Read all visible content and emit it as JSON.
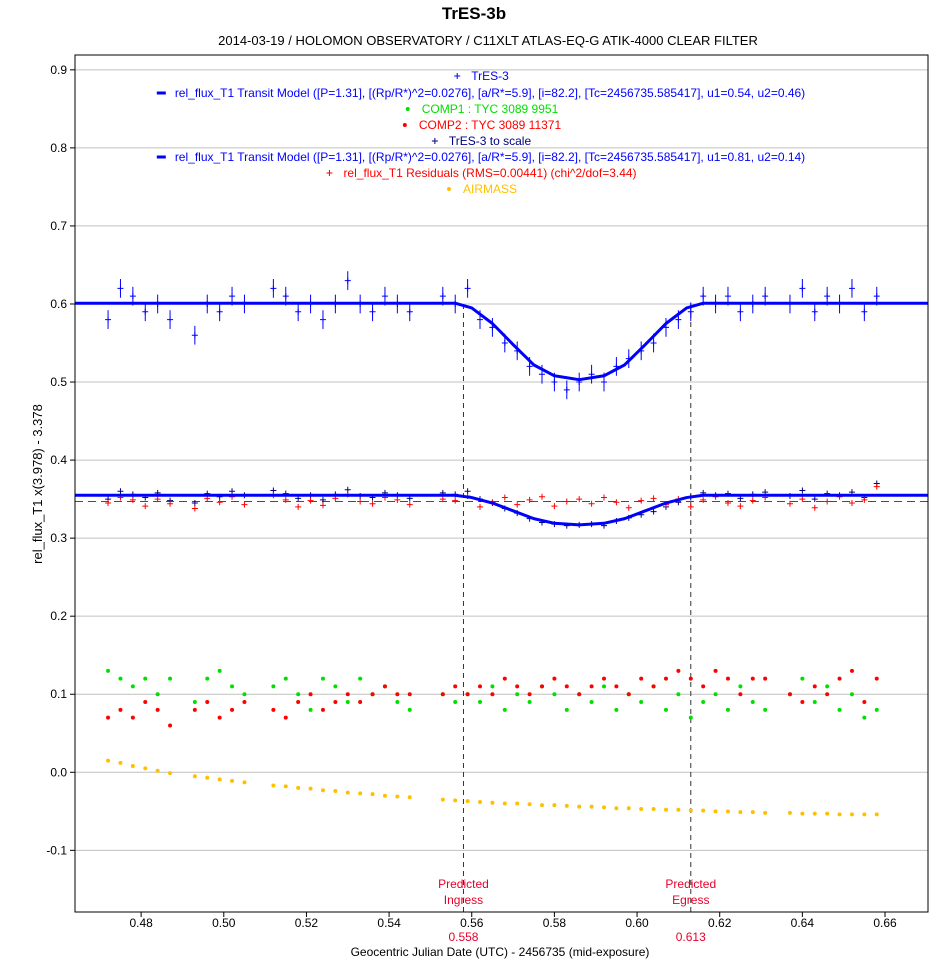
{
  "chart_data": {
    "type": "scatter",
    "title": "TrES-3b",
    "subtitle": "2014-03-19 / HOLOMON OBSERVATORY / C11XLT ATLAS-EQ-G ATIK-4000 CLEAR FILTER",
    "xlabel": "Geocentric Julian Date (UTC) - 2456735 (mid-exposure)",
    "ylabel": "rel_flux_T1 x(3.978) - 3.378",
    "xlim": [
      0.464,
      0.6704
    ],
    "ylim": [
      -0.179,
      0.919
    ],
    "xticks": [
      "0.48",
      "0.50",
      "0.52",
      "0.54",
      "0.56",
      "0.58",
      "0.60",
      "0.62",
      "0.64",
      "0.66"
    ],
    "yticks": [
      "0.9",
      "0.8",
      "0.7",
      "0.6",
      "0.5",
      "0.4",
      "0.3",
      "0.2",
      "0.1",
      "0.0",
      "-0.1"
    ],
    "grid": "horizontal",
    "legend_placement": "top-center",
    "legend": [
      {
        "label": "TrES-3",
        "marker": "+",
        "color": "#0000ff"
      },
      {
        "label": "rel_flux_T1 Transit Model ([P=1.31], [(Rp/R*)^2=0.0276], [a/R*=5.9], [i=82.2], [Tc=2456735.585417], u1=0.54, u2=0.46)",
        "marker": "line",
        "color": "#0000ff"
      },
      {
        "label": "COMP1 : TYC 3089 9951",
        "marker": "dot",
        "color": "#00e000"
      },
      {
        "label": "COMP2 : TYC 3089 11371",
        "marker": "dot",
        "color": "#ff0000"
      },
      {
        "label": "TrES-3 to scale",
        "marker": "+",
        "color": "#000080"
      },
      {
        "label": "rel_flux_T1 Transit Model ([P=1.31], [(Rp/R*)^2=0.0276], [a/R*=5.9], [i=82.2], [Tc=2456735.585417], u1=0.81, u2=0.14)",
        "marker": "line",
        "color": "#0000ff"
      },
      {
        "label": "rel_flux_T1 Residuals (RMS=0.00441) (chi^2/dof=3.44)",
        "marker": "+",
        "color": "#ff0000"
      },
      {
        "label": "AIRMASS",
        "marker": "dot",
        "color": "#ffc000"
      }
    ],
    "x": [
      0.472,
      0.475,
      0.478,
      0.481,
      0.484,
      0.487,
      0.493,
      0.496,
      0.499,
      0.502,
      0.505,
      0.512,
      0.515,
      0.518,
      0.521,
      0.524,
      0.527,
      0.53,
      0.533,
      0.536,
      0.539,
      0.542,
      0.545,
      0.553,
      0.556,
      0.559,
      0.562,
      0.565,
      0.568,
      0.571,
      0.574,
      0.577,
      0.58,
      0.583,
      0.586,
      0.589,
      0.592,
      0.595,
      0.598,
      0.601,
      0.604,
      0.607,
      0.61,
      0.613,
      0.616,
      0.619,
      0.622,
      0.625,
      0.628,
      0.631,
      0.637,
      0.64,
      0.643,
      0.646,
      0.649,
      0.652,
      0.655,
      0.658
    ],
    "series": [
      {
        "name": "TrES-3",
        "color": "#0000ff",
        "marker": "+",
        "error": 0.012,
        "values": [
          0.58,
          0.62,
          0.61,
          0.59,
          0.6,
          0.58,
          0.56,
          0.6,
          0.59,
          0.61,
          0.6,
          0.62,
          0.61,
          0.59,
          0.6,
          0.58,
          0.6,
          0.63,
          0.6,
          0.59,
          0.61,
          0.6,
          0.59,
          0.61,
          0.6,
          0.62,
          0.58,
          0.57,
          0.55,
          0.54,
          0.52,
          0.51,
          0.5,
          0.49,
          0.5,
          0.51,
          0.5,
          0.52,
          0.53,
          0.54,
          0.55,
          0.57,
          0.58,
          0.59,
          0.61,
          0.6,
          0.61,
          0.59,
          0.6,
          0.61,
          0.6,
          0.62,
          0.59,
          0.61,
          0.6,
          0.62,
          0.59,
          0.61
        ]
      },
      {
        "name": "TrES-3 to scale",
        "color": "#000080",
        "marker": "+",
        "values": [
          0.35,
          0.36,
          0.356,
          0.352,
          0.358,
          0.348,
          0.345,
          0.357,
          0.353,
          0.36,
          0.355,
          0.361,
          0.357,
          0.351,
          0.355,
          0.349,
          0.356,
          0.362,
          0.354,
          0.352,
          0.358,
          0.355,
          0.351,
          0.358,
          0.356,
          0.36,
          0.35,
          0.345,
          0.338,
          0.332,
          0.325,
          0.32,
          0.318,
          0.316,
          0.317,
          0.318,
          0.316,
          0.322,
          0.326,
          0.33,
          0.334,
          0.34,
          0.346,
          0.352,
          0.358,
          0.355,
          0.357,
          0.351,
          0.356,
          0.359,
          0.354,
          0.361,
          0.35,
          0.357,
          0.355,
          0.359,
          0.352,
          0.37
        ]
      },
      {
        "name": "rel_flux_T1 Residuals",
        "color": "#ff0000",
        "marker": "+",
        "baseline": 0.347,
        "values": [
          0.345,
          0.352,
          0.349,
          0.341,
          0.35,
          0.344,
          0.338,
          0.351,
          0.346,
          0.353,
          0.343,
          0.355,
          0.349,
          0.34,
          0.348,
          0.342,
          0.351,
          0.356,
          0.347,
          0.344,
          0.352,
          0.349,
          0.343,
          0.35,
          0.348,
          0.354,
          0.34,
          0.346,
          0.352,
          0.343,
          0.349,
          0.353,
          0.341,
          0.347,
          0.35,
          0.344,
          0.352,
          0.346,
          0.339,
          0.348,
          0.351,
          0.343,
          0.35,
          0.34,
          0.349,
          0.353,
          0.345,
          0.341,
          0.348,
          0.352,
          0.344,
          0.35,
          0.339,
          0.347,
          0.353,
          0.345,
          0.349,
          0.366
        ]
      },
      {
        "name": "COMP1 : TYC 3089 9951",
        "color": "#00e000",
        "marker": "dot",
        "values": [
          0.13,
          0.12,
          0.11,
          0.12,
          0.1,
          0.12,
          0.09,
          0.12,
          0.13,
          0.11,
          0.1,
          0.11,
          0.12,
          0.1,
          0.08,
          0.12,
          0.11,
          0.09,
          0.12,
          0.1,
          0.11,
          0.09,
          0.08,
          0.1,
          0.09,
          0.1,
          0.09,
          0.11,
          0.08,
          0.1,
          0.09,
          0.11,
          0.1,
          0.08,
          0.1,
          0.09,
          0.11,
          0.08,
          0.1,
          0.09,
          0.11,
          0.08,
          0.1,
          0.07,
          0.09,
          0.1,
          0.08,
          0.11,
          0.09,
          0.08,
          0.1,
          0.12,
          0.09,
          0.11,
          0.08,
          0.1,
          0.07,
          0.08
        ]
      },
      {
        "name": "COMP2 : TYC 3089 11371",
        "color": "#ff0000",
        "marker": "dot",
        "values": [
          0.07,
          0.08,
          0.07,
          0.09,
          0.08,
          0.06,
          0.08,
          0.09,
          0.07,
          0.08,
          0.09,
          0.08,
          0.07,
          0.09,
          0.1,
          0.08,
          0.09,
          0.1,
          0.09,
          0.1,
          0.11,
          0.1,
          0.1,
          0.1,
          0.11,
          0.1,
          0.11,
          0.1,
          0.12,
          0.11,
          0.1,
          0.11,
          0.12,
          0.11,
          0.1,
          0.11,
          0.12,
          0.11,
          0.1,
          0.12,
          0.11,
          0.12,
          0.13,
          0.12,
          0.11,
          0.13,
          0.12,
          0.1,
          0.12,
          0.12,
          0.1,
          0.09,
          0.11,
          0.1,
          0.12,
          0.13,
          0.09,
          0.12
        ]
      },
      {
        "name": "AIRMASS",
        "color": "#ffc000",
        "marker": "dot",
        "values": [
          0.015,
          0.012,
          0.008,
          0.005,
          0.002,
          -0.001,
          -0.005,
          -0.007,
          -0.009,
          -0.011,
          -0.013,
          -0.017,
          -0.018,
          -0.02,
          -0.021,
          -0.023,
          -0.024,
          -0.026,
          -0.027,
          -0.028,
          -0.03,
          -0.031,
          -0.032,
          -0.035,
          -0.036,
          -0.037,
          -0.038,
          -0.039,
          -0.04,
          -0.04,
          -0.041,
          -0.042,
          -0.042,
          -0.043,
          -0.044,
          -0.044,
          -0.045,
          -0.046,
          -0.046,
          -0.047,
          -0.047,
          -0.048,
          -0.048,
          -0.049,
          -0.049,
          -0.05,
          -0.05,
          -0.051,
          -0.051,
          -0.052,
          -0.052,
          -0.053,
          -0.053,
          -0.053,
          -0.054,
          -0.054,
          -0.054,
          -0.054
        ]
      }
    ],
    "models": [
      {
        "name": "Transit Model (u1=0.54, u2=0.46)",
        "color": "#0000ff",
        "x": [
          0.464,
          0.556,
          0.56,
          0.565,
          0.57,
          0.575,
          0.58,
          0.586,
          0.592,
          0.597,
          0.602,
          0.607,
          0.612,
          0.616,
          0.6704
        ],
        "y": [
          0.601,
          0.601,
          0.595,
          0.575,
          0.548,
          0.522,
          0.508,
          0.503,
          0.508,
          0.522,
          0.548,
          0.575,
          0.595,
          0.601,
          0.601
        ]
      },
      {
        "name": "Transit Model (u1=0.81, u2=0.14)",
        "color": "#0000ff",
        "x": [
          0.464,
          0.556,
          0.56,
          0.565,
          0.57,
          0.575,
          0.58,
          0.586,
          0.592,
          0.597,
          0.602,
          0.607,
          0.612,
          0.616,
          0.6704
        ],
        "y": [
          0.355,
          0.355,
          0.352,
          0.345,
          0.335,
          0.325,
          0.319,
          0.317,
          0.319,
          0.325,
          0.335,
          0.345,
          0.352,
          0.355,
          0.355
        ]
      }
    ],
    "annotations": [
      {
        "label_line1": "Predicted",
        "label_line2": "Ingress",
        "x": 0.558,
        "value_label": "0.558"
      },
      {
        "label_line1": "Predicted",
        "label_line2": "Egress",
        "x": 0.613,
        "value_label": "0.613"
      }
    ]
  }
}
